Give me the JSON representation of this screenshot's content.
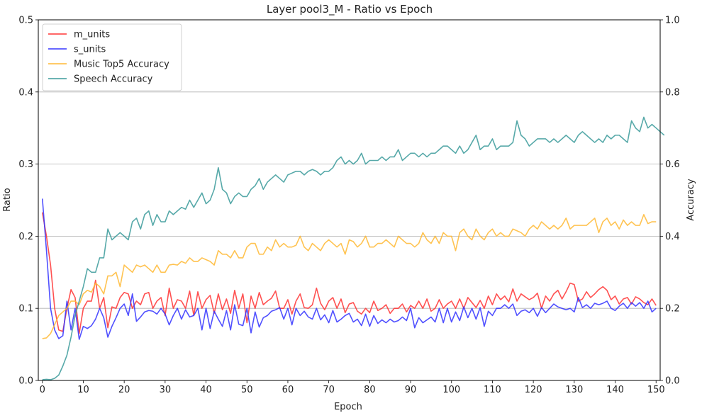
{
  "chart_data": {
    "type": "line",
    "title": "Layer pool3_M - Ratio vs Epoch",
    "xlabel": "Epoch",
    "ylabel": "Ratio",
    "y2label": "Accuracy",
    "xlim": [
      -1,
      151
    ],
    "ylim": [
      0,
      0.5
    ],
    "y2lim": [
      0,
      1.0
    ],
    "x_ticks": [
      0,
      10,
      20,
      30,
      40,
      50,
      60,
      70,
      80,
      90,
      100,
      110,
      120,
      130,
      140,
      150
    ],
    "y_ticks": [
      0.0,
      0.1,
      0.2,
      0.3,
      0.4,
      0.5
    ],
    "y2_ticks": [
      0.0,
      0.2,
      0.4,
      0.6,
      0.8,
      1.0
    ],
    "x_tick_labels": [
      "0",
      "10",
      "20",
      "30",
      "40",
      "50",
      "60",
      "70",
      "80",
      "90",
      "100",
      "110",
      "120",
      "130",
      "140",
      "150"
    ],
    "y_tick_labels": [
      "0.0",
      "0.1",
      "0.2",
      "0.3",
      "0.4",
      "0.5"
    ],
    "y2_tick_labels": [
      "0.0",
      "0.2",
      "0.4",
      "0.6",
      "0.8",
      "1.0"
    ],
    "grid": "horizontal on secondary axis",
    "legend_position": "top-left",
    "series": [
      {
        "name": "m_units",
        "axis": "left",
        "color": "#ff3333",
        "values": [
          0.233,
          0.2,
          0.16,
          0.1,
          0.07,
          0.068,
          0.1,
          0.126,
          0.115,
          0.065,
          0.1,
          0.11,
          0.11,
          0.139,
          0.1,
          0.115,
          0.073,
          0.102,
          0.1,
          0.115,
          0.122,
          0.12,
          0.1,
          0.11,
          0.105,
          0.12,
          0.122,
          0.1,
          0.11,
          0.115,
          0.09,
          0.128,
          0.1,
          0.112,
          0.11,
          0.1,
          0.124,
          0.09,
          0.123,
          0.1,
          0.112,
          0.118,
          0.093,
          0.12,
          0.098,
          0.113,
          0.093,
          0.125,
          0.1,
          0.12,
          0.08,
          0.117,
          0.1,
          0.122,
          0.105,
          0.11,
          0.114,
          0.124,
          0.1,
          0.1,
          0.112,
          0.092,
          0.11,
          0.12,
          0.101,
          0.1,
          0.105,
          0.128,
          0.107,
          0.098,
          0.11,
          0.115,
          0.1,
          0.113,
          0.094,
          0.106,
          0.108,
          0.096,
          0.092,
          0.1,
          0.094,
          0.11,
          0.097,
          0.1,
          0.105,
          0.093,
          0.1,
          0.1,
          0.106,
          0.095,
          0.104,
          0.1,
          0.11,
          0.1,
          0.113,
          0.096,
          0.1,
          0.112,
          0.1,
          0.106,
          0.11,
          0.1,
          0.113,
          0.1,
          0.115,
          0.108,
          0.101,
          0.111,
          0.1,
          0.117,
          0.105,
          0.12,
          0.112,
          0.117,
          0.109,
          0.127,
          0.11,
          0.12,
          0.116,
          0.112,
          0.115,
          0.121,
          0.1,
          0.117,
          0.11,
          0.12,
          0.125,
          0.113,
          0.123,
          0.135,
          0.133,
          0.11,
          0.113,
          0.123,
          0.115,
          0.12,
          0.126,
          0.13,
          0.125,
          0.112,
          0.117,
          0.106,
          0.113,
          0.115,
          0.106,
          0.116,
          0.113,
          0.108,
          0.105,
          0.113,
          0.104
        ]
      },
      {
        "name": "s_units",
        "axis": "left",
        "color": "#3333ff",
        "values": [
          0.252,
          0.18,
          0.1,
          0.07,
          0.058,
          0.062,
          0.11,
          0.07,
          0.1,
          0.057,
          0.075,
          0.072,
          0.076,
          0.085,
          0.1,
          0.087,
          0.06,
          0.075,
          0.087,
          0.1,
          0.106,
          0.09,
          0.12,
          0.082,
          0.088,
          0.095,
          0.097,
          0.096,
          0.092,
          0.1,
          0.092,
          0.077,
          0.09,
          0.1,
          0.085,
          0.098,
          0.088,
          0.09,
          0.1,
          0.07,
          0.1,
          0.072,
          0.096,
          0.085,
          0.075,
          0.097,
          0.07,
          0.105,
          0.078,
          0.076,
          0.1,
          0.066,
          0.095,
          0.074,
          0.087,
          0.09,
          0.096,
          0.098,
          0.101,
          0.085,
          0.1,
          0.077,
          0.1,
          0.09,
          0.096,
          0.088,
          0.085,
          0.1,
          0.084,
          0.091,
          0.08,
          0.097,
          0.081,
          0.085,
          0.09,
          0.093,
          0.081,
          0.085,
          0.076,
          0.092,
          0.075,
          0.09,
          0.079,
          0.084,
          0.08,
          0.085,
          0.081,
          0.083,
          0.088,
          0.083,
          0.1,
          0.073,
          0.087,
          0.08,
          0.084,
          0.088,
          0.081,
          0.1,
          0.08,
          0.1,
          0.081,
          0.095,
          0.083,
          0.102,
          0.087,
          0.1,
          0.085,
          0.101,
          0.075,
          0.096,
          0.09,
          0.1,
          0.1,
          0.105,
          0.1,
          0.106,
          0.09,
          0.096,
          0.098,
          0.094,
          0.1,
          0.089,
          0.101,
          0.094,
          0.1,
          0.106,
          0.102,
          0.1,
          0.098,
          0.1,
          0.095,
          0.115,
          0.101,
          0.105,
          0.1,
          0.107,
          0.105,
          0.107,
          0.11,
          0.1,
          0.097,
          0.103,
          0.107,
          0.1,
          0.108,
          0.103,
          0.108,
          0.1,
          0.11,
          0.095,
          0.1
        ]
      },
      {
        "name": "Music Top5 Accuracy",
        "axis": "right",
        "color": "#ffb833",
        "values": [
          0.116,
          0.118,
          0.13,
          0.155,
          0.18,
          0.19,
          0.2,
          0.22,
          0.22,
          0.21,
          0.24,
          0.25,
          0.245,
          0.27,
          0.26,
          0.24,
          0.29,
          0.29,
          0.3,
          0.26,
          0.32,
          0.31,
          0.3,
          0.32,
          0.315,
          0.32,
          0.31,
          0.3,
          0.32,
          0.3,
          0.3,
          0.32,
          0.322,
          0.32,
          0.33,
          0.325,
          0.34,
          0.33,
          0.33,
          0.34,
          0.335,
          0.33,
          0.32,
          0.36,
          0.35,
          0.35,
          0.34,
          0.36,
          0.34,
          0.34,
          0.37,
          0.38,
          0.38,
          0.35,
          0.35,
          0.37,
          0.36,
          0.39,
          0.37,
          0.38,
          0.37,
          0.37,
          0.375,
          0.4,
          0.37,
          0.36,
          0.38,
          0.37,
          0.36,
          0.38,
          0.39,
          0.38,
          0.37,
          0.38,
          0.35,
          0.39,
          0.385,
          0.37,
          0.38,
          0.4,
          0.37,
          0.37,
          0.38,
          0.38,
          0.39,
          0.38,
          0.37,
          0.4,
          0.39,
          0.38,
          0.38,
          0.37,
          0.38,
          0.41,
          0.39,
          0.38,
          0.4,
          0.38,
          0.41,
          0.4,
          0.4,
          0.36,
          0.41,
          0.42,
          0.4,
          0.39,
          0.42,
          0.4,
          0.39,
          0.41,
          0.42,
          0.4,
          0.41,
          0.4,
          0.4,
          0.42,
          0.415,
          0.41,
          0.4,
          0.42,
          0.43,
          0.42,
          0.44,
          0.43,
          0.42,
          0.43,
          0.42,
          0.43,
          0.45,
          0.42,
          0.43,
          0.43,
          0.43,
          0.43,
          0.44,
          0.45,
          0.41,
          0.44,
          0.45,
          0.43,
          0.44,
          0.42,
          0.445,
          0.43,
          0.44,
          0.43,
          0.43,
          0.46,
          0.435,
          0.44,
          0.44
        ]
      },
      {
        "name": "Speech Accuracy",
        "axis": "right",
        "color": "#3a9a9a",
        "values": [
          0.002,
          0.003,
          0.002,
          0.006,
          0.015,
          0.04,
          0.07,
          0.12,
          0.18,
          0.22,
          0.26,
          0.31,
          0.3,
          0.3,
          0.34,
          0.34,
          0.42,
          0.39,
          0.4,
          0.41,
          0.4,
          0.39,
          0.44,
          0.45,
          0.42,
          0.46,
          0.47,
          0.43,
          0.46,
          0.44,
          0.44,
          0.47,
          0.46,
          0.47,
          0.48,
          0.475,
          0.5,
          0.48,
          0.5,
          0.52,
          0.49,
          0.5,
          0.53,
          0.59,
          0.53,
          0.52,
          0.49,
          0.51,
          0.52,
          0.51,
          0.51,
          0.53,
          0.54,
          0.56,
          0.53,
          0.55,
          0.56,
          0.57,
          0.56,
          0.55,
          0.57,
          0.575,
          0.58,
          0.58,
          0.57,
          0.58,
          0.585,
          0.58,
          0.57,
          0.58,
          0.58,
          0.59,
          0.61,
          0.62,
          0.6,
          0.61,
          0.6,
          0.61,
          0.63,
          0.6,
          0.61,
          0.61,
          0.61,
          0.62,
          0.61,
          0.62,
          0.62,
          0.64,
          0.61,
          0.62,
          0.63,
          0.63,
          0.62,
          0.63,
          0.62,
          0.63,
          0.63,
          0.64,
          0.65,
          0.65,
          0.64,
          0.63,
          0.65,
          0.63,
          0.64,
          0.66,
          0.68,
          0.64,
          0.65,
          0.65,
          0.67,
          0.64,
          0.65,
          0.65,
          0.65,
          0.66,
          0.72,
          0.68,
          0.67,
          0.65,
          0.66,
          0.67,
          0.67,
          0.67,
          0.66,
          0.67,
          0.66,
          0.67,
          0.68,
          0.67,
          0.66,
          0.68,
          0.69,
          0.68,
          0.67,
          0.66,
          0.67,
          0.66,
          0.68,
          0.67,
          0.68,
          0.68,
          0.67,
          0.66,
          0.72,
          0.7,
          0.69,
          0.73,
          0.7,
          0.71,
          0.7,
          0.69,
          0.68
        ]
      }
    ]
  }
}
